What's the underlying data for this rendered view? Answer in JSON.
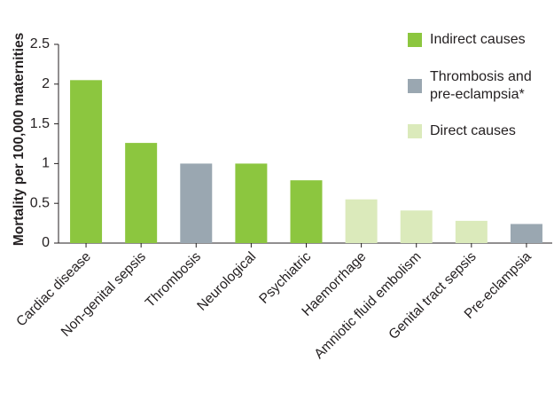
{
  "chart_data": {
    "type": "bar",
    "title": "",
    "xlabel": "",
    "ylabel": "Mortality per 100,000 maternities",
    "ylim": [
      0,
      2.5
    ],
    "yticks": [
      0,
      0.5,
      1,
      1.5,
      2,
      2.5
    ],
    "ytick_labels": [
      "0",
      "0.5",
      "1",
      "1.5",
      "2",
      "2.5"
    ],
    "grid": false,
    "legend_position": "top-right",
    "categories": [
      "Cardiac disease",
      "Non-genital sepsis",
      "Thrombosis",
      "Neurological",
      "Psychiatric",
      "Haemorrhage",
      "Amniotic fluid embolism",
      "Genital tract sepsis",
      "Pre-eclampsia"
    ],
    "values": [
      2.05,
      1.26,
      1.0,
      1.0,
      0.79,
      0.55,
      0.41,
      0.28,
      0.24
    ],
    "bar_groups": [
      "indirect",
      "indirect",
      "thrombosis",
      "indirect",
      "indirect",
      "direct",
      "direct",
      "direct",
      "thrombosis"
    ],
    "legend": [
      {
        "key": "indirect",
        "label_lines": [
          "Indirect causes"
        ],
        "color": "#8cc63f"
      },
      {
        "key": "thrombosis",
        "label_lines": [
          "Thrombosis and",
          "pre-eclampsia*"
        ],
        "color": "#9aa7b1"
      },
      {
        "key": "direct",
        "label_lines": [
          "Direct causes"
        ],
        "color": "#dbeabb"
      }
    ]
  }
}
